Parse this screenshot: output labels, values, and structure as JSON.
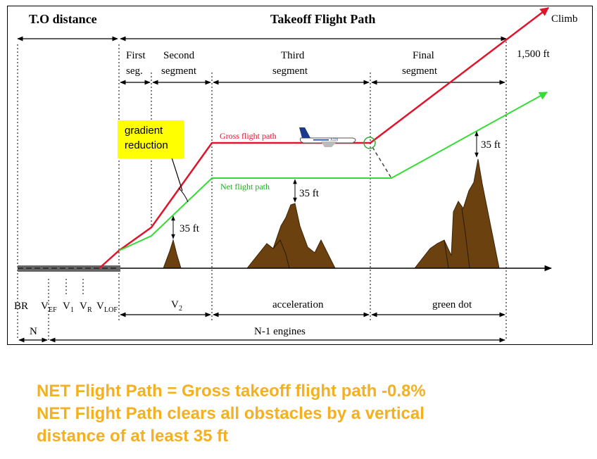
{
  "diagram": {
    "to_distance_title": "T.O distance",
    "flight_path_title": "Takeoff Flight Path",
    "climb_label": "Climb",
    "altitude_label": "1,500 ft",
    "segments": {
      "first_line1": "First",
      "first_line2": "seg.",
      "second_line1": "Second",
      "second_line2": "segment",
      "third_line1": "Third",
      "third_line2": "segment",
      "final_line1": "Final",
      "final_line2": "segment"
    },
    "gradient_callout_line1": "gradient",
    "gradient_callout_line2": "reduction",
    "gross_path_label": "Gross flight path",
    "net_path_label": "Net flight path",
    "clearance_label": "35 ft",
    "aircraft_label": "A320",
    "speeds": {
      "br": "BR",
      "vef": "V",
      "vef_sub": "EF",
      "v1": "V",
      "v1_sub": "1",
      "vr": "V",
      "vr_sub": "R",
      "vlof": "V",
      "vlof_sub": "LOF"
    },
    "phases": {
      "v2": "V",
      "v2_sub": "2",
      "acceleration": "acceleration",
      "green_dot": "green dot"
    },
    "engines": {
      "all": "N",
      "one_out": "N-1 engines"
    },
    "colors": {
      "gross_path": "#e0142b",
      "net_path": "#33dd33",
      "obstacle": "#6b4110",
      "callout": "#ffff00",
      "caption": "#f5b021",
      "runway": "#666666"
    }
  },
  "caption": {
    "line1": "NET Flight Path = Gross takeoff flight path -0.8%",
    "line2": "NET Flight Path clears all obstacles by a vertical",
    "line3": "distance of at least 35 ft"
  }
}
